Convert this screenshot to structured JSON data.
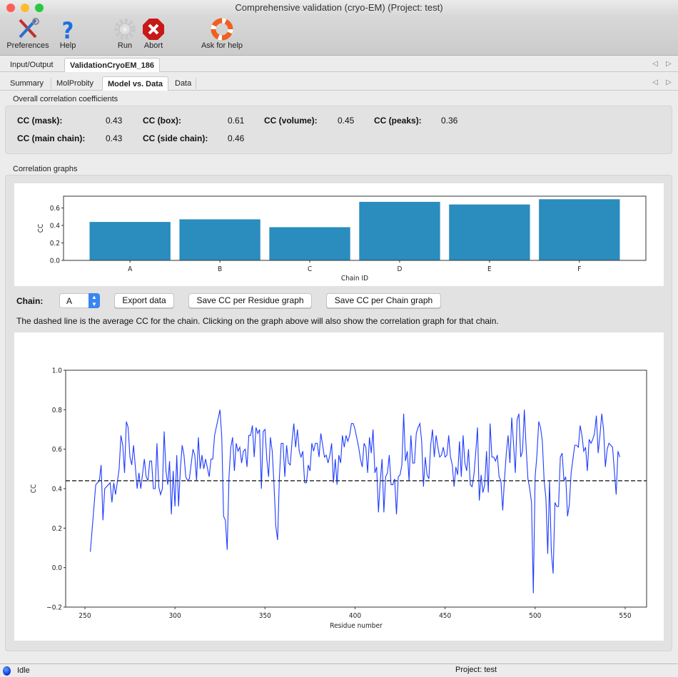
{
  "window": {
    "title": "Comprehensive validation (cryo-EM) (Project: test)"
  },
  "toolbar": {
    "preferences": "Preferences",
    "help": "Help",
    "run": "Run",
    "abort": "Abort",
    "ask_for_help": "Ask for help"
  },
  "tabs_main": [
    "Input/Output",
    "ValidationCryoEM_186"
  ],
  "tabs_sub": [
    "Summary",
    "MolProbity",
    "Model vs. Data",
    "Data"
  ],
  "overall": {
    "title": "Overall correlation coefficients",
    "items": [
      {
        "label": "CC (mask):",
        "value": "0.43"
      },
      {
        "label": "CC (box):",
        "value": "0.61"
      },
      {
        "label": "CC (volume):",
        "value": "0.45"
      },
      {
        "label": "CC (peaks):",
        "value": "0.36"
      },
      {
        "label": "CC (main chain):",
        "value": "0.43"
      },
      {
        "label": "CC (side chain):",
        "value": "0.46"
      }
    ]
  },
  "graphs": {
    "title": "Correlation graphs",
    "chain_label": "Chain:",
    "chain_value": "A",
    "export": "Export data",
    "save_residue": "Save CC per Residue graph",
    "save_chain": "Save CC per Chain graph",
    "note": "The dashed line is the average CC for the chain. Clicking on the graph above will also show the correlation graph for that chain."
  },
  "status": {
    "state": "Idle",
    "project": "Project: test"
  },
  "colors": {
    "bar": "#2b8cbe",
    "line": "#1f3cff",
    "status_dot": "#1040e0"
  },
  "chart_data": [
    {
      "type": "bar",
      "categories": [
        "A",
        "B",
        "C",
        "D",
        "E",
        "F"
      ],
      "values": [
        0.44,
        0.47,
        0.38,
        0.67,
        0.64,
        0.7
      ],
      "xlabel": "Chain ID",
      "ylabel": "CC",
      "ylim": [
        0,
        0.735
      ],
      "yticks": [
        "0.0",
        "0.2",
        "0.4",
        "0.6"
      ],
      "grid": false
    },
    {
      "type": "line",
      "xlabel": "Residue number",
      "ylabel": "CC",
      "xlim": [
        239.3,
        561.9
      ],
      "ylim": [
        -0.2,
        1.0
      ],
      "xticks": [
        "250",
        "300",
        "350",
        "400",
        "450",
        "500",
        "550"
      ],
      "yticks": [
        "−0.2",
        "0.0",
        "0.2",
        "0.4",
        "0.6",
        "0.8",
        "1.0"
      ],
      "average": 0.44,
      "grid": false,
      "points": [
        [
          253,
          0.08
        ],
        [
          256,
          0.42
        ],
        [
          258,
          0.44
        ],
        [
          259,
          0.52
        ],
        [
          260,
          0.24
        ],
        [
          261,
          0.4
        ],
        [
          264,
          0.43
        ],
        [
          265,
          0.33
        ],
        [
          266,
          0.43
        ],
        [
          267,
          0.37
        ],
        [
          269,
          0.5
        ],
        [
          270,
          0.67
        ],
        [
          271,
          0.62
        ],
        [
          272,
          0.48
        ],
        [
          273,
          0.74
        ],
        [
          274,
          0.71
        ],
        [
          275,
          0.56
        ],
        [
          276,
          0.52
        ],
        [
          277,
          0.62
        ],
        [
          279,
          0.4
        ],
        [
          280,
          0.48
        ],
        [
          281,
          0.4
        ],
        [
          283,
          0.55
        ],
        [
          284,
          0.46
        ],
        [
          285,
          0.44
        ],
        [
          286,
          0.54
        ],
        [
          287,
          0.54
        ],
        [
          288,
          0.4
        ],
        [
          289,
          0.4
        ],
        [
          290,
          0.63
        ],
        [
          291,
          0.41
        ],
        [
          292,
          0.37
        ],
        [
          293,
          0.4
        ],
        [
          294,
          0.69
        ],
        [
          295,
          0.49
        ],
        [
          296,
          0.42
        ],
        [
          297,
          0.54
        ],
        [
          298,
          0.27
        ],
        [
          299,
          0.49
        ],
        [
          300,
          0.31
        ],
        [
          301,
          0.57
        ],
        [
          302,
          0.31
        ],
        [
          303,
          0.5
        ],
        [
          304,
          0.62
        ],
        [
          305,
          0.57
        ],
        [
          306,
          0.46
        ],
        [
          307,
          0.44
        ],
        [
          308,
          0.45
        ],
        [
          310,
          0.6
        ],
        [
          311,
          0.57
        ],
        [
          312,
          0.44
        ],
        [
          313,
          0.66
        ],
        [
          314,
          0.5
        ],
        [
          315,
          0.57
        ],
        [
          316,
          0.5
        ],
        [
          317,
          0.55
        ],
        [
          319,
          0.46
        ],
        [
          320,
          0.55
        ],
        [
          321,
          0.55
        ],
        [
          322,
          0.67
        ],
        [
          325,
          0.8
        ],
        [
          326,
          0.66
        ],
        [
          327,
          0.26
        ],
        [
          328,
          0.24
        ],
        [
          329,
          0.09
        ],
        [
          330,
          0.46
        ],
        [
          331,
          0.61
        ],
        [
          332,
          0.66
        ],
        [
          333,
          0.49
        ],
        [
          334,
          0.63
        ],
        [
          335,
          0.59
        ],
        [
          336,
          0.61
        ],
        [
          337,
          0.53
        ],
        [
          338,
          0.59
        ],
        [
          339,
          0.6
        ],
        [
          340,
          0.51
        ],
        [
          341,
          0.67
        ],
        [
          342,
          0.67
        ],
        [
          343,
          0.72
        ],
        [
          344,
          0.56
        ],
        [
          345,
          0.71
        ],
        [
          346,
          0.68
        ],
        [
          347,
          0.7
        ],
        [
          348,
          0.4
        ],
        [
          349,
          0.69
        ],
        [
          350,
          0.7
        ],
        [
          351,
          0.55
        ],
        [
          352,
          0.46
        ],
        [
          353,
          0.66
        ],
        [
          354,
          0.59
        ],
        [
          355,
          0.42
        ],
        [
          356,
          0.21
        ],
        [
          357,
          0.14
        ],
        [
          358,
          0.46
        ],
        [
          359,
          0.63
        ],
        [
          360,
          0.63
        ],
        [
          361,
          0.46
        ],
        [
          362,
          0.62
        ],
        [
          363,
          0.53
        ],
        [
          364,
          0.52
        ],
        [
          365,
          0.64
        ],
        [
          366,
          0.73
        ],
        [
          367,
          0.61
        ],
        [
          368,
          0.7
        ],
        [
          369,
          0.59
        ],
        [
          370,
          0.56
        ],
        [
          371,
          0.59
        ],
        [
          372,
          0.43
        ],
        [
          373,
          0.43
        ],
        [
          374,
          0.52
        ],
        [
          375,
          0.49
        ],
        [
          376,
          0.63
        ],
        [
          377,
          0.59
        ],
        [
          378,
          0.63
        ],
        [
          379,
          0.63
        ],
        [
          380,
          0.56
        ],
        [
          381,
          0.68
        ],
        [
          382,
          0.62
        ],
        [
          383,
          0.56
        ],
        [
          384,
          0.57
        ],
        [
          385,
          0.53
        ],
        [
          386,
          0.57
        ],
        [
          387,
          0.63
        ],
        [
          388,
          0.43
        ],
        [
          389,
          0.55
        ],
        [
          390,
          0.42
        ],
        [
          391,
          0.57
        ],
        [
          392,
          0.53
        ],
        [
          393,
          0.67
        ],
        [
          394,
          0.61
        ],
        [
          395,
          0.67
        ],
        [
          396,
          0.64
        ],
        [
          397,
          0.67
        ],
        [
          398,
          0.73
        ],
        [
          399,
          0.73
        ],
        [
          400,
          0.7
        ],
        [
          402,
          0.61
        ],
        [
          403,
          0.55
        ],
        [
          404,
          0.51
        ],
        [
          405,
          0.63
        ],
        [
          406,
          0.61
        ],
        [
          407,
          0.48
        ],
        [
          408,
          0.66
        ],
        [
          409,
          0.58
        ],
        [
          410,
          0.7
        ],
        [
          411,
          0.48
        ],
        [
          412,
          0.51
        ],
        [
          413,
          0.28
        ],
        [
          414,
          0.44
        ],
        [
          415,
          0.55
        ],
        [
          416,
          0.28
        ],
        [
          417,
          0.46
        ],
        [
          418,
          0.48
        ],
        [
          419,
          0.57
        ],
        [
          420,
          0.42
        ],
        [
          421,
          0.42
        ],
        [
          422,
          0.45
        ],
        [
          423,
          0.27
        ],
        [
          424,
          0.46
        ],
        [
          425,
          0.47
        ],
        [
          426,
          0.52
        ],
        [
          427,
          0.78
        ],
        [
          428,
          0.54
        ],
        [
          429,
          0.59
        ],
        [
          430,
          0.44
        ],
        [
          431,
          0.67
        ],
        [
          432,
          0.53
        ],
        [
          433,
          0.53
        ],
        [
          434,
          0.68
        ],
        [
          435,
          0.71
        ],
        [
          436,
          0.73
        ],
        [
          437,
          0.64
        ],
        [
          438,
          0.41
        ],
        [
          439,
          0.56
        ],
        [
          440,
          0.47
        ],
        [
          441,
          0.45
        ],
        [
          442,
          0.62
        ],
        [
          443,
          0.7
        ],
        [
          444,
          0.56
        ],
        [
          445,
          0.67
        ],
        [
          446,
          0.61
        ],
        [
          447,
          0.56
        ],
        [
          448,
          0.57
        ],
        [
          449,
          0.61
        ],
        [
          450,
          0.56
        ],
        [
          451,
          0.57
        ],
        [
          452,
          0.67
        ],
        [
          453,
          0.56
        ],
        [
          454,
          0.52
        ],
        [
          455,
          0.41
        ],
        [
          456,
          0.51
        ],
        [
          457,
          0.47
        ],
        [
          458,
          0.64
        ],
        [
          459,
          0.46
        ],
        [
          460,
          0.67
        ],
        [
          461,
          0.53
        ],
        [
          462,
          0.49
        ],
        [
          463,
          0.6
        ],
        [
          464,
          0.42
        ],
        [
          465,
          0.41
        ],
        [
          466,
          0.47
        ],
        [
          467,
          0.58
        ],
        [
          468,
          0.71
        ],
        [
          469,
          0.34
        ],
        [
          470,
          0.47
        ],
        [
          471,
          0.38
        ],
        [
          472,
          0.42
        ],
        [
          473,
          0.59
        ],
        [
          474,
          0.38
        ],
        [
          475,
          0.73
        ],
        [
          476,
          0.56
        ],
        [
          477,
          0.56
        ],
        [
          478,
          0.54
        ],
        [
          479,
          0.57
        ],
        [
          480,
          0.46
        ],
        [
          481,
          0.44
        ],
        [
          482,
          0.29
        ],
        [
          483,
          0.45
        ],
        [
          484,
          0.58
        ],
        [
          485,
          0.67
        ],
        [
          486,
          0.53
        ],
        [
          487,
          0.76
        ],
        [
          488,
          0.63
        ],
        [
          489,
          0.48
        ],
        [
          490,
          0.75
        ],
        [
          491,
          0.78
        ],
        [
          492,
          0.56
        ],
        [
          493,
          0.59
        ],
        [
          494,
          0.8
        ],
        [
          495,
          0.61
        ],
        [
          496,
          0.45
        ],
        [
          497,
          0.4
        ],
        [
          498,
          0.33
        ],
        [
          499,
          -0.13
        ],
        [
          500,
          0.46
        ],
        [
          501,
          0.57
        ],
        [
          502,
          0.74
        ],
        [
          503,
          0.71
        ],
        [
          504,
          0.64
        ],
        [
          505,
          0.44
        ],
        [
          506,
          0.35
        ],
        [
          507,
          0.07
        ],
        [
          508,
          0.44
        ],
        [
          509,
          0.08
        ],
        [
          510,
          -0.03
        ],
        [
          511,
          0.33
        ],
        [
          512,
          0.31
        ],
        [
          513,
          0.31
        ],
        [
          514,
          0.56
        ],
        [
          515,
          0.58
        ],
        [
          516,
          0.44
        ],
        [
          517,
          0.46
        ],
        [
          518,
          0.26
        ],
        [
          519,
          0.32
        ],
        [
          520,
          0.48
        ],
        [
          521,
          0.55
        ],
        [
          522,
          0.62
        ],
        [
          523,
          0.62
        ],
        [
          524,
          0.61
        ],
        [
          525,
          0.72
        ],
        [
          526,
          0.67
        ],
        [
          527,
          0.59
        ],
        [
          528,
          0.61
        ],
        [
          529,
          0.49
        ],
        [
          530,
          0.65
        ],
        [
          531,
          0.63
        ],
        [
          532,
          0.65
        ],
        [
          533,
          0.68
        ],
        [
          534,
          0.77
        ],
        [
          535,
          0.58
        ],
        [
          536,
          0.67
        ],
        [
          537,
          0.78
        ],
        [
          538,
          0.7
        ],
        [
          539,
          0.51
        ],
        [
          540,
          0.6
        ],
        [
          541,
          0.63
        ],
        [
          542,
          0.62
        ],
        [
          543,
          0.61
        ],
        [
          545,
          0.37
        ],
        [
          546,
          0.59
        ],
        [
          547,
          0.56
        ]
      ]
    }
  ]
}
